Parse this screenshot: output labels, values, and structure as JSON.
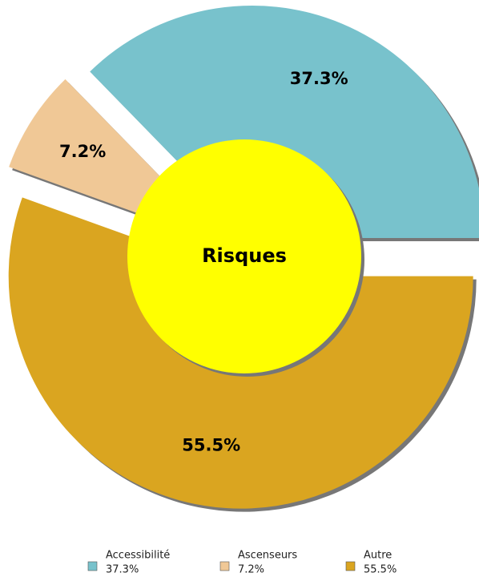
{
  "chart_data": {
    "type": "pie",
    "center_label": "Risques",
    "categories": [
      "Accessibilité",
      "Ascenseurs",
      "Autre"
    ],
    "values": [
      37.3,
      7.2,
      55.5
    ],
    "value_labels": [
      "37.3%",
      "7.2%",
      "55.5%"
    ],
    "colors": [
      "#78c2cc",
      "#f0c896",
      "#daa520"
    ],
    "center_color": "#ffff00",
    "legend": "bottom"
  }
}
